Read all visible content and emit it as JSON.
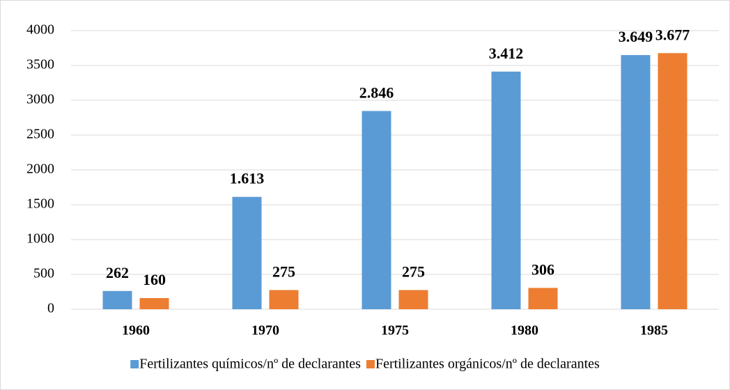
{
  "chart_data": {
    "type": "bar",
    "categories": [
      "1960",
      "1970",
      "1975",
      "1980",
      "1985"
    ],
    "series": [
      {
        "name": "Fertilizantes químicos/nº de declarantes",
        "color": "#5b9bd5",
        "values": [
          262,
          1613,
          2846,
          3412,
          3649
        ],
        "value_labels": [
          "262",
          "1.613",
          "2.846",
          "3.412",
          "3.649"
        ]
      },
      {
        "name": "Fertilizantes orgánicos/nº de declarantes",
        "color": "#ed7d31",
        "values": [
          160,
          275,
          275,
          306,
          3677
        ],
        "value_labels": [
          "160",
          "275",
          "275",
          "306",
          "3.677"
        ]
      }
    ],
    "ylim": [
      0,
      4000
    ],
    "yticks": [
      0,
      500,
      1000,
      1500,
      2000,
      2500,
      3000,
      3500,
      4000
    ],
    "grid": true,
    "legend": "bottom"
  }
}
